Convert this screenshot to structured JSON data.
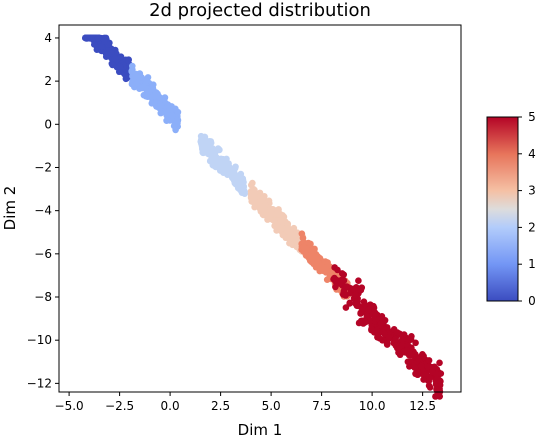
{
  "chart_data": {
    "type": "scatter",
    "title": "2d projected distribution",
    "xlabel": "Dim 1",
    "ylabel": "Dim 2",
    "xlim": [
      -5.5,
      14.4
    ],
    "ylim": [
      -12.4,
      4.6
    ],
    "x_ticks": [
      -5.0,
      -2.5,
      0.0,
      2.5,
      5.0,
      7.5,
      10.0,
      12.5
    ],
    "x_tick_labels": [
      "−5.0",
      "−2.5",
      "0.0",
      "2.5",
      "5.0",
      "7.5",
      "10.0",
      "12.5"
    ],
    "y_ticks": [
      4,
      2,
      0,
      -2,
      -4,
      -6,
      -8,
      -10,
      -12
    ],
    "y_tick_labels": [
      "4",
      "2",
      "0",
      "−2",
      "−4",
      "−6",
      "−8",
      "−10",
      "−12"
    ],
    "colorbar": {
      "colormap": "coolwarm",
      "range": [
        0,
        5
      ],
      "ticks": [
        0,
        1,
        2,
        3,
        4,
        5
      ],
      "tick_labels": [
        "0",
        "1",
        "2",
        "3",
        "4",
        "5"
      ],
      "placement": "right"
    },
    "grid": false,
    "clusters": [
      {
        "class": 0,
        "color": "#3b4cc0",
        "x_range": [
          -4.2,
          -2.0
        ],
        "center": [
          -3.4,
          3.3
        ]
      },
      {
        "class": 1,
        "color": "#8caff9",
        "x_range": [
          -1.9,
          0.4
        ],
        "center": [
          -0.9,
          0.9
        ]
      },
      {
        "class": 2,
        "color": "#c0d4f5",
        "x_range": [
          1.5,
          3.7
        ],
        "center": [
          2.6,
          -2.2
        ]
      },
      {
        "class": 3,
        "color": "#f2cbb7",
        "x_range": [
          4.0,
          6.6
        ],
        "center": [
          5.4,
          -4.5
        ]
      },
      {
        "class": 4,
        "color": "#ee8468",
        "x_range": [
          6.5,
          8.8
        ],
        "center": [
          7.6,
          -6.4
        ]
      },
      {
        "class": 5,
        "color": "#b40426",
        "x_range": [
          8.0,
          13.4
        ],
        "center": [
          10.8,
          -9.3
        ]
      }
    ]
  }
}
